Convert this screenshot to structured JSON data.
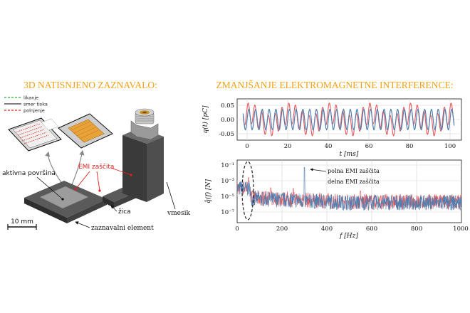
{
  "left": {
    "title": "3D NATISNJENO ZAZNAVALO:",
    "legend": [
      {
        "label": "likanje",
        "color": "#2fae3b"
      },
      {
        "label": "smer tiska",
        "color": "#333333"
      },
      {
        "label": "polnjenje",
        "color": "#e0201c"
      }
    ],
    "labels": {
      "active_surface": "aktivna površina",
      "emi_shield": "EMI zaščita",
      "wire": "žica",
      "connector": "vmesik",
      "sensing_element": "zaznavalni element",
      "scale_bar": "10 mm"
    }
  },
  "right": {
    "title": "ZMANJŠANJE ELEKTROMAGNETNE INTERFERENCE:",
    "top_plot": {
      "ylabel": "q(t) [pC]",
      "xlabel": "t [ms]",
      "yticks": [
        "0.05",
        "0.00",
        "-0.05"
      ],
      "xticks": [
        "0",
        "20",
        "40",
        "60",
        "80",
        "100"
      ]
    },
    "bottom_plot": {
      "ylabel": "q̂(f) [N]",
      "xlabel": "f [Hz]",
      "yticks": [
        "10⁻¹",
        "10⁻³",
        "10⁻⁵",
        "10⁻⁷"
      ],
      "xticks": [
        "0",
        "200",
        "400",
        "600",
        "800",
        "1000"
      ],
      "annotation_full": "polna EMI zaščita",
      "annotation_partial": "delna EMI zaščita"
    },
    "colors": {
      "full": "#4f7fb0",
      "partial": "#e8565a"
    }
  }
}
